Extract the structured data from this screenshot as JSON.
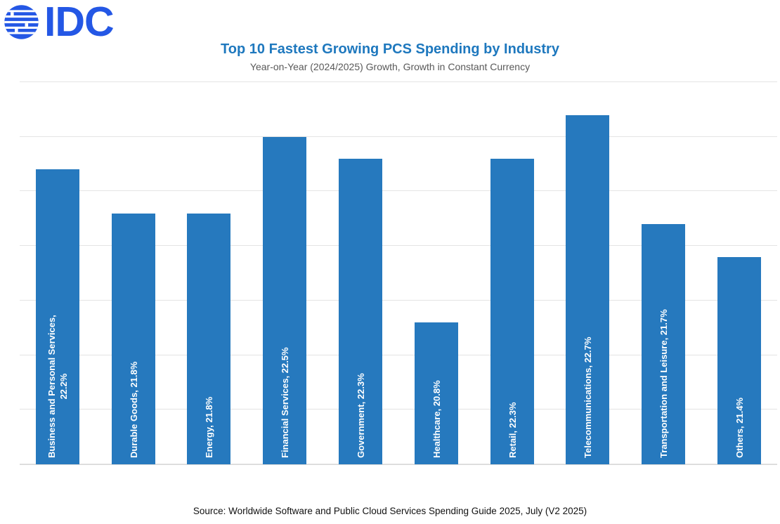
{
  "logo": {
    "text": "IDC"
  },
  "header": {
    "title": "Top 10 Fastest Growing PCS Spending by Industry",
    "subtitle": "Year-on-Year (2024/2025) Growth, Growth in Constant Currency"
  },
  "footer": {
    "source": "Source: Worldwide Software and Public Cloud Services Spending Guide 2025, July (V2 2025)"
  },
  "colors": {
    "logo_blue": "#2457E5",
    "title_blue": "#1E78BE",
    "bar_blue": "#2679BE",
    "subtitle_gray": "#595959",
    "gridline_gray": "#E4E4E4",
    "axis_gray": "#D8D8D8",
    "bar_label_white": "#FFFFFF",
    "source_black": "#111111"
  },
  "chart_data": {
    "type": "bar",
    "title": "Top 10 Fastest Growing PCS Spending by Industry",
    "subtitle": "Year-on-Year (2024/2025) Growth, Growth in Constant Currency",
    "categories": [
      "Business and Personal Services",
      "Durable Goods",
      "Energy",
      "Financial Services",
      "Government",
      "Healthcare",
      "Retail",
      "Telecommunications",
      "Transportation and Leisure",
      "Others"
    ],
    "values": [
      22.2,
      21.8,
      21.8,
      22.5,
      22.3,
      20.8,
      22.3,
      22.7,
      21.7,
      21.4
    ],
    "value_unit": "%",
    "bar_labels": [
      [
        "Business and Personal Services,",
        "22.2%"
      ],
      [
        "Durable Goods, 21.8%"
      ],
      [
        "Energy, 21.8%"
      ],
      [
        "Financial Services, 22.5%"
      ],
      [
        "Government, 22.3%"
      ],
      [
        "Healthcare, 20.8%"
      ],
      [
        "Retail, 22.3%"
      ],
      [
        "Telecommunications, 22.7%"
      ],
      [
        "Transportation and Leisure, 21.7%"
      ],
      [
        "Others, 21.4%"
      ]
    ],
    "xlabel": "",
    "ylabel": "",
    "ylim": [
      19.5,
      23.0
    ],
    "ytick_step": 0.5,
    "y_tick_labels_visible": false,
    "grid": true,
    "legend": "none",
    "bar_label_position": "inside-bottom-rotated"
  }
}
